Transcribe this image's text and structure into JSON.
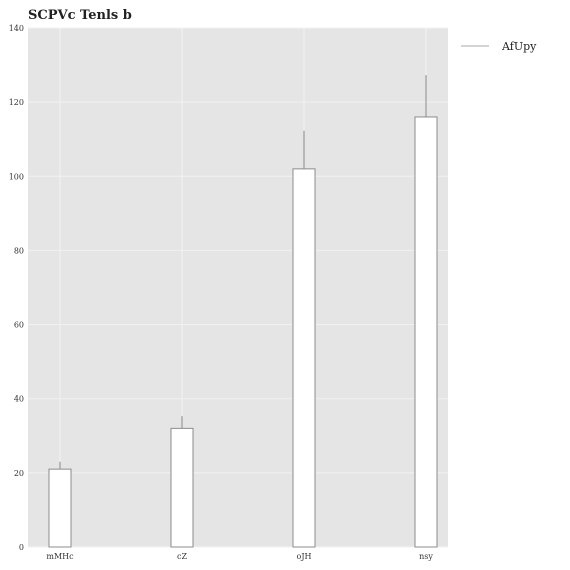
{
  "chart_data": {
    "type": "bar",
    "title": "SCPVc Tenls b",
    "xlabel": "",
    "ylabel": "",
    "categories": [
      "mMHc",
      "cZ",
      "oJH",
      "nsy"
    ],
    "series": [
      {
        "name": "AfUpy",
        "values": [
          21,
          32,
          102,
          116
        ],
        "error": [
          2,
          3.3,
          10.3,
          11.3
        ]
      }
    ],
    "ylim": [
      0,
      140
    ],
    "yticks": [
      0,
      20,
      40,
      60,
      80,
      100,
      120,
      140
    ],
    "grid": true,
    "legend_position": "outside-top-right",
    "colors": {
      "plot_background": "#e5e5e5",
      "grid": "#f2f2f2",
      "bar_fill": "#ffffff",
      "bar_edge": "#8c8c8c",
      "error_bar": "#8c8c8c",
      "legend_line": "#aaaaaa"
    }
  }
}
